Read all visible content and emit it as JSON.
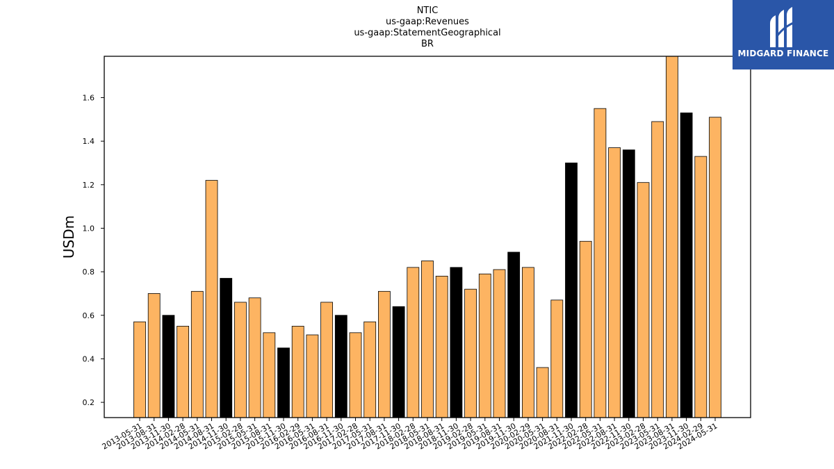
{
  "header": {
    "title_lines": [
      "NTIC",
      "us-gaap:Revenues",
      "us-gaap:StatementGeographical",
      "BR"
    ]
  },
  "logo": {
    "text": "MIDGARD FINANCE",
    "background": "#2a56a8"
  },
  "chart_data": {
    "type": "bar",
    "title": "NTIC\nus-gaap:Revenues\nus-gaap:StatementGeographical\nBR",
    "xlabel": "",
    "ylabel": "USDm",
    "ylim": [
      0.13,
      1.79
    ],
    "yticks": [
      0.2,
      0.4,
      0.6,
      0.8,
      1.0,
      1.2,
      1.4,
      1.6
    ],
    "colors": {
      "quarter": "#fdb462",
      "year_end": "#000000",
      "edge": "#000000"
    },
    "categories": [
      "2013-05-31",
      "2013-08-31",
      "2013-11-30",
      "2014-02-28",
      "2014-05-31",
      "2014-08-31",
      "2014-11-30",
      "2015-02-28",
      "2015-05-31",
      "2015-08-31",
      "2015-11-30",
      "2016-02-29",
      "2016-05-31",
      "2016-08-31",
      "2016-11-30",
      "2017-02-28",
      "2017-05-31",
      "2017-08-31",
      "2017-11-30",
      "2018-02-28",
      "2018-05-31",
      "2018-08-31",
      "2018-11-30",
      "2019-02-28",
      "2019-05-31",
      "2019-08-31",
      "2019-11-30",
      "2020-02-29",
      "2020-05-31",
      "2020-08-31",
      "2021-11-30",
      "2022-02-28",
      "2022-05-31",
      "2022-08-31",
      "2022-11-30",
      "2023-02-28",
      "2023-05-31",
      "2023-08-31",
      "2023-11-30",
      "2024-02-29",
      "2024-05-31"
    ],
    "values": [
      0.57,
      0.7,
      0.6,
      0.55,
      0.71,
      1.22,
      0.77,
      0.66,
      0.68,
      0.52,
      0.45,
      0.55,
      0.51,
      0.66,
      0.6,
      0.52,
      0.57,
      0.71,
      0.64,
      0.82,
      0.85,
      0.78,
      0.82,
      0.72,
      0.79,
      0.81,
      0.89,
      0.82,
      0.36,
      0.67,
      1.3,
      0.94,
      1.55,
      1.37,
      1.36,
      1.21,
      1.49,
      1.8,
      1.53,
      1.33,
      1.51
    ],
    "year_end": [
      false,
      false,
      true,
      false,
      false,
      false,
      true,
      false,
      false,
      false,
      true,
      false,
      false,
      false,
      true,
      false,
      false,
      false,
      true,
      false,
      false,
      false,
      true,
      false,
      false,
      false,
      true,
      false,
      false,
      false,
      true,
      false,
      false,
      false,
      true,
      false,
      false,
      false,
      true,
      false,
      false
    ]
  }
}
